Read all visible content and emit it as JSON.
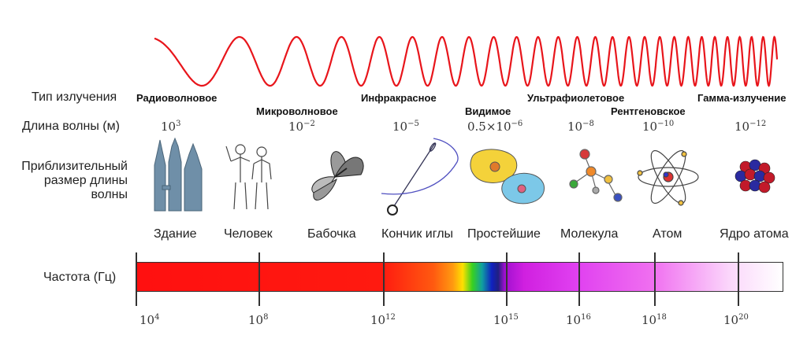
{
  "row_labels": {
    "radiation_type": "Тип излучения",
    "wavelength": "Длина волны (м)",
    "approx_size": [
      "Приблизительный",
      "размер длины",
      "волны"
    ],
    "frequency": "Частота (Гц)"
  },
  "radiation_types": [
    "Радиоволновое",
    "Микроволновое",
    "Инфракрасное",
    "Видимое",
    "Ультрафиолетовое",
    "Рентгеновское",
    "Гамма-излучение"
  ],
  "wavelengths": [
    {
      "base": "10",
      "exp": "3"
    },
    {
      "base": "10",
      "exp": "−2"
    },
    {
      "base": "10",
      "exp": "−5"
    },
    {
      "base": "0.5×10",
      "exp": "−6"
    },
    {
      "base": "10",
      "exp": "−8"
    },
    {
      "base": "10",
      "exp": "−10"
    },
    {
      "base": "10",
      "exp": "−12"
    }
  ],
  "objects": [
    {
      "name": "Здание",
      "icon": "building-icon"
    },
    {
      "name": "Человек",
      "icon": "human-icon"
    },
    {
      "name": "Бабочка",
      "icon": "butterfly-icon"
    },
    {
      "name": "Кончик иглы",
      "icon": "needle-icon"
    },
    {
      "name": "Простейшие",
      "icon": "protozoa-icon"
    },
    {
      "name": "Молекула",
      "icon": "molecule-icon"
    },
    {
      "name": "Атом",
      "icon": "atom-icon"
    },
    {
      "name": "Ядро атома",
      "icon": "nucleus-icon"
    }
  ],
  "frequencies": [
    {
      "base": "10",
      "exp": "4"
    },
    {
      "base": "10",
      "exp": "8"
    },
    {
      "base": "10",
      "exp": "12"
    },
    {
      "base": "10",
      "exp": "15"
    },
    {
      "base": "10",
      "exp": "16"
    },
    {
      "base": "10",
      "exp": "18"
    },
    {
      "base": "10",
      "exp": "20"
    }
  ],
  "colors": {
    "wave": "#e8151b",
    "spectrum_border": "#333333"
  }
}
